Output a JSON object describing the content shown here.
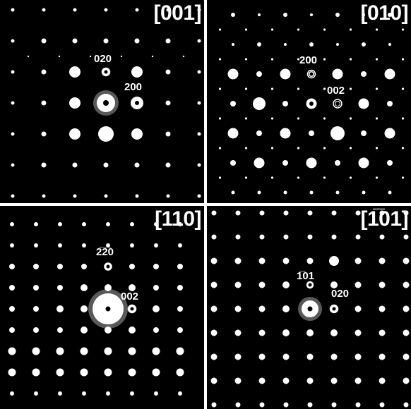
{
  "panels": [
    {
      "zone_axis": "[001]",
      "labels": [
        "020",
        "200"
      ]
    },
    {
      "zone_axis": "[010]",
      "labels": [
        "200",
        "002"
      ]
    },
    {
      "zone_axis": "[110]",
      "labels": [
        "2̅2̅0",
        "002"
      ]
    },
    {
      "zone_axis": "[1̅01]",
      "labels": [
        "1̅01",
        "020"
      ]
    }
  ],
  "colors": {
    "background": "#000000",
    "spot": "#ffffff",
    "separator": "#ffffff"
  }
}
